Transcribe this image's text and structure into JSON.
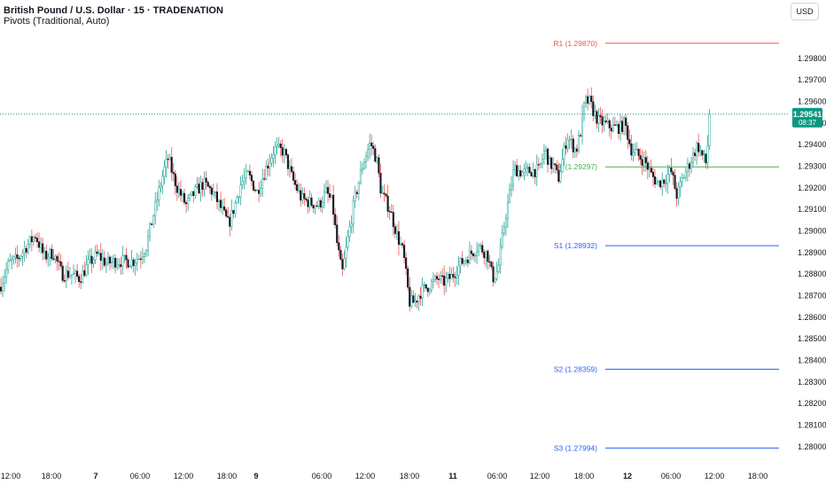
{
  "header": {
    "title": "British Pound / U.S. Dollar · 15 · TRADENATION",
    "indicator": "Pivots (Traditional, Auto)"
  },
  "currency_button": "USD",
  "chart_data": {
    "type": "candlestick",
    "symbol": "GBPUSD",
    "timeframe": "15",
    "colors": {
      "up_body": "#ffffff",
      "up_wick": "#26a69a",
      "down_body": "#131722",
      "down_wick": "#ef5350",
      "R1": "#ef5350",
      "P": "#4caf50",
      "S": "#2962ff",
      "last_price_bg": "#089981",
      "text": "#131722",
      "grid": "none"
    },
    "y_axis": {
      "range": [
        1.27975,
        1.2998
      ],
      "tick_labels": [
        "1.28000",
        "1.28100",
        "1.28200",
        "1.28300",
        "1.28400",
        "1.28500",
        "1.28600",
        "1.28700",
        "1.28800",
        "1.28900",
        "1.29000",
        "1.29100",
        "1.29200",
        "1.29300",
        "1.29400",
        "1.29500",
        "1.29600",
        "1.29700",
        "1.29800"
      ],
      "tick_values": [
        1.28,
        1.281,
        1.282,
        1.283,
        1.284,
        1.285,
        1.286,
        1.287,
        1.288,
        1.289,
        1.29,
        1.291,
        1.292,
        1.293,
        1.294,
        1.295,
        1.296,
        1.297,
        1.298
      ]
    },
    "x_axis": {
      "range": [
        0,
        932
      ],
      "tick_labels": [
        "12:00",
        "18:00",
        "7",
        "06:00",
        "12:00",
        "18:00",
        "9",
        "06:00",
        "12:00",
        "18:00",
        "11",
        "06:00",
        "12:00",
        "18:00",
        "12",
        "06:00",
        "12:00",
        "18:00"
      ],
      "tick_positions": [
        12,
        58,
        108,
        158,
        207,
        256,
        289,
        363,
        412,
        462,
        511,
        561,
        609,
        659,
        708,
        757,
        806,
        855
      ],
      "tick_bold": [
        false,
        false,
        true,
        false,
        false,
        false,
        true,
        false,
        false,
        false,
        true,
        false,
        false,
        false,
        true,
        false,
        false,
        false
      ]
    },
    "pivots": [
      {
        "name": "R1",
        "label": "R1 (1.29870)",
        "value": 1.2987,
        "x_start": 683
      },
      {
        "name": "P",
        "label": "P (1.29297)",
        "value": 1.29297,
        "x_start": 683
      },
      {
        "name": "S1",
        "label": "S1 (1.28932)",
        "value": 1.28932,
        "x_start": 683
      },
      {
        "name": "S2",
        "label": "S2 (1.28359)",
        "value": 1.28359,
        "x_start": 683
      },
      {
        "name": "S3",
        "label": "S3 (1.27994)",
        "value": 1.27994,
        "x_start": 683
      }
    ],
    "last_price": {
      "value": 1.29541,
      "label": "1.29541",
      "countdown": "08:37"
    },
    "series_keypoints": [
      [
        0,
        1.2874
      ],
      [
        10,
        1.2885
      ],
      [
        20,
        1.2887
      ],
      [
        30,
        1.2893
      ],
      [
        40,
        1.2898
      ],
      [
        50,
        1.2888
      ],
      [
        60,
        1.289
      ],
      [
        70,
        1.288
      ],
      [
        80,
        1.288
      ],
      [
        90,
        1.2878
      ],
      [
        100,
        1.2885
      ],
      [
        110,
        1.2889
      ],
      [
        120,
        1.2885
      ],
      [
        130,
        1.2886
      ],
      [
        140,
        1.2886
      ],
      [
        150,
        1.2886
      ],
      [
        158,
        1.2888
      ],
      [
        165,
        1.2893
      ],
      [
        170,
        1.2902
      ],
      [
        178,
        1.2916
      ],
      [
        185,
        1.2928
      ],
      [
        190,
        1.2934
      ],
      [
        195,
        1.2926
      ],
      [
        200,
        1.292
      ],
      [
        210,
        1.2912
      ],
      [
        220,
        1.2918
      ],
      [
        230,
        1.2922
      ],
      [
        240,
        1.2918
      ],
      [
        250,
        1.291
      ],
      [
        258,
        1.2903
      ],
      [
        265,
        1.2912
      ],
      [
        272,
        1.2922
      ],
      [
        280,
        1.2926
      ],
      [
        290,
        1.2918
      ],
      [
        300,
        1.2929
      ],
      [
        310,
        1.2938
      ],
      [
        320,
        1.2937
      ],
      [
        330,
        1.2924
      ],
      [
        340,
        1.2915
      ],
      [
        350,
        1.2913
      ],
      [
        360,
        1.2912
      ],
      [
        368,
        1.2918
      ],
      [
        375,
        1.2913
      ],
      [
        380,
        1.2895
      ],
      [
        386,
        1.288
      ],
      [
        392,
        1.2895
      ],
      [
        400,
        1.2914
      ],
      [
        410,
        1.2932
      ],
      [
        418,
        1.2941
      ],
      [
        425,
        1.2933
      ],
      [
        430,
        1.2918
      ],
      [
        440,
        1.291
      ],
      [
        448,
        1.2898
      ],
      [
        455,
        1.289
      ],
      [
        462,
        1.2867
      ],
      [
        468,
        1.2867
      ],
      [
        475,
        1.2872
      ],
      [
        485,
        1.2875
      ],
      [
        495,
        1.2878
      ],
      [
        500,
        1.2876
      ],
      [
        510,
        1.2879
      ],
      [
        520,
        1.2885
      ],
      [
        530,
        1.2889
      ],
      [
        540,
        1.2893
      ],
      [
        550,
        1.2889
      ],
      [
        556,
        1.2878
      ],
      [
        562,
        1.2882
      ],
      [
        570,
        1.2906
      ],
      [
        575,
        1.2917
      ],
      [
        580,
        1.2929
      ],
      [
        590,
        1.2927
      ],
      [
        600,
        1.2928
      ],
      [
        608,
        1.2928
      ],
      [
        615,
        1.2938
      ],
      [
        620,
        1.2931
      ],
      [
        625,
        1.293
      ],
      [
        630,
        1.2924
      ],
      [
        640,
        1.2944
      ],
      [
        650,
        1.2937
      ],
      [
        655,
        1.2946
      ],
      [
        660,
        1.296
      ],
      [
        665,
        1.296
      ],
      [
        670,
        1.2955
      ],
      [
        675,
        1.2951
      ],
      [
        680,
        1.295
      ],
      [
        690,
        1.2948
      ],
      [
        700,
        1.2948
      ],
      [
        705,
        1.295
      ],
      [
        712,
        1.2938
      ],
      [
        720,
        1.2935
      ],
      [
        728,
        1.2932
      ],
      [
        735,
        1.2926
      ],
      [
        742,
        1.2922
      ],
      [
        750,
        1.2924
      ],
      [
        757,
        1.2928
      ],
      [
        764,
        1.2916
      ],
      [
        770,
        1.2924
      ],
      [
        780,
        1.2933
      ],
      [
        787,
        1.294
      ],
      [
        792,
        1.2935
      ],
      [
        797,
        1.2931
      ],
      [
        801,
        1.2955
      ]
    ]
  }
}
